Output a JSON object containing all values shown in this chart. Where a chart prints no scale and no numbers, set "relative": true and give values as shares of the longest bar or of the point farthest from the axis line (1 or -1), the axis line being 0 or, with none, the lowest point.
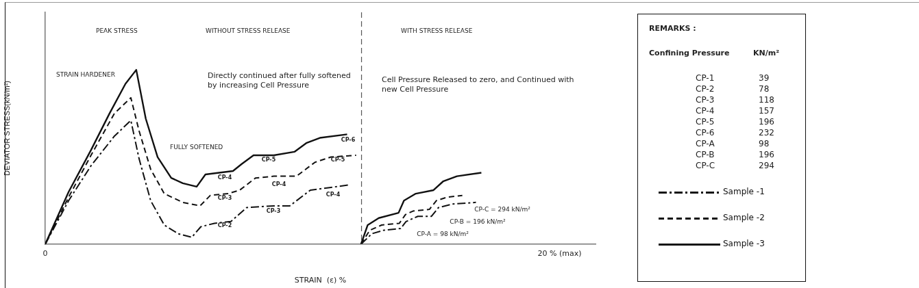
{
  "chart_data": {
    "type": "line",
    "relative": true,
    "xlabel": "STRAIN  (ε) %",
    "ylabel": "DEVIATOR STRESS(kN/m²)",
    "xlim": [
      0,
      21.4
    ],
    "xticks": [
      0,
      {
        "value": 20,
        "label": "20 % (max)"
      }
    ],
    "tick_labels": "x",
    "grid": false,
    "marker": "none",
    "legend": "right",
    "ref_lines": [
      {
        "axis": "x",
        "value": 12.3,
        "line_style": "dashed",
        "color": "#555555"
      }
    ],
    "series": [
      {
        "name": "Sample -1",
        "color": "#111111",
        "line_style": "dashdot",
        "x": [
          0,
          0.91,
          1.78,
          2.69,
          3.33,
          3.65,
          4.1,
          4.63,
          5.17,
          5.7,
          6.05,
          6.58,
          7.22,
          7.83,
          8.89,
          9.51,
          10.31,
          11.82,
          null,
          12.28,
          12.7,
          13.16,
          13.82,
          14.03,
          14.49,
          15.02,
          15.29,
          15.82,
          16.75
        ],
        "values": [
          0,
          0.25,
          0.45,
          0.62,
          0.71,
          0.49,
          0.25,
          0.11,
          0.06,
          0.04,
          0.1,
          0.12,
          0.13,
          0.21,
          0.22,
          0.22,
          0.31,
          0.34,
          null,
          0,
          0.06,
          0.08,
          0.09,
          0.13,
          0.16,
          0.16,
          0.21,
          0.23,
          0.24
        ]
      },
      {
        "name": "Sample -2",
        "color": "#111111",
        "line_style": "dashed",
        "x": [
          0,
          0.91,
          1.78,
          2.69,
          3.33,
          3.65,
          4.1,
          4.63,
          5.35,
          6.02,
          6.42,
          7.11,
          7.56,
          8.18,
          8.89,
          9.77,
          10.49,
          11.11,
          12.09,
          null,
          12.28,
          12.62,
          13.08,
          13.77,
          14.01,
          14.3,
          14.94,
          15.21,
          15.63,
          16.22
        ],
        "values": [
          0,
          0.27,
          0.51,
          0.75,
          0.84,
          0.65,
          0.43,
          0.29,
          0.24,
          0.22,
          0.28,
          0.29,
          0.31,
          0.38,
          0.39,
          0.39,
          0.47,
          0.5,
          0.51,
          null,
          0,
          0.08,
          0.11,
          0.12,
          0.17,
          0.19,
          0.2,
          0.25,
          0.27,
          0.28
        ]
      },
      {
        "name": "Sample -3",
        "color": "#111111",
        "line_style": "solid",
        "x": [
          0,
          0.91,
          1.78,
          2.5,
          3.12,
          3.54,
          3.91,
          4.37,
          4.9,
          5.35,
          5.89,
          6.23,
          6.76,
          7.3,
          7.64,
          8.1,
          8.89,
          9.69,
          10.15,
          10.68,
          11.74,
          null,
          12.28,
          12.54,
          12.97,
          13.74,
          13.95,
          14.41,
          15.1,
          15.47,
          16.01,
          16.96
        ],
        "values": [
          0,
          0.3,
          0.54,
          0.75,
          0.92,
          1,
          0.72,
          0.5,
          0.38,
          0.35,
          0.33,
          0.4,
          0.41,
          0.42,
          0.46,
          0.51,
          0.51,
          0.53,
          0.58,
          0.61,
          0.63,
          null,
          0,
          0.11,
          0.15,
          0.18,
          0.25,
          0.29,
          0.31,
          0.36,
          0.39,
          0.41
        ]
      }
    ],
    "annotations": [
      "PEAK STRESS",
      "WITHOUT  STRESS  RELEASE",
      "WITH  STRESS  RELEASE",
      "STRAIN HARDENER",
      "Directly continued after fully softened by increasing Cell Pressure",
      "FULLY SOFTENED",
      "Cell  Pressure Released  to zero, and Continued with new Cell Pressure",
      "CP-6",
      "CP-5",
      "CP-5",
      "CP-4",
      "CP-4",
      "CP-4",
      "CP-3",
      "CP-3",
      "CP-2",
      "CP-C = 294 kN/m²",
      "CP-B = 196 kN/m²",
      "CP-A = 98 kN/m²",
      "REMARKS :",
      "Confining Pressure",
      "KN/m²",
      "CP-1",
      "39",
      "CP-2",
      "78",
      "CP-3",
      "118",
      "CP-4",
      "157",
      "CP-5",
      "196",
      "CP-6",
      "232",
      "CP-A",
      "98",
      "CP-B",
      "196",
      "CP-C",
      "294"
    ]
  }
}
